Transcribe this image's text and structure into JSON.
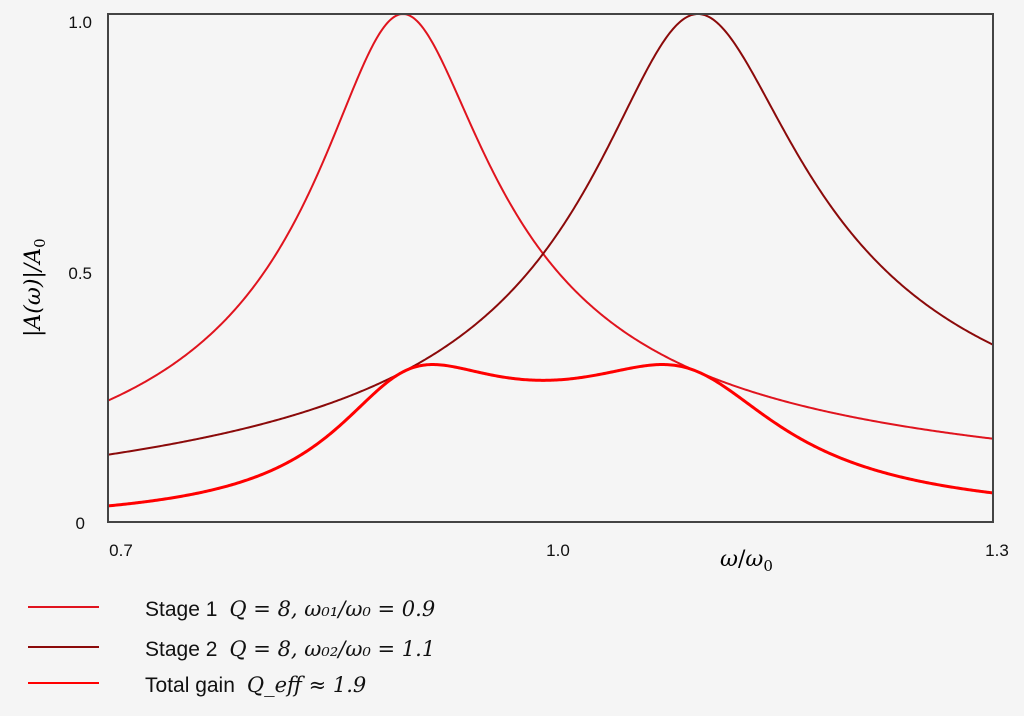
{
  "chart_data": {
    "type": "line",
    "title": "",
    "xlabel": "ω/ω₀",
    "ylabel": "|A(ω)|/A₀",
    "xlim": [
      0.7,
      1.3
    ],
    "ylim": [
      0,
      1.0
    ],
    "x_ticks": [
      "0.7",
      "1.0",
      "1.3"
    ],
    "y_ticks": [
      "0",
      "0.5",
      "1.0"
    ],
    "grid": false,
    "legend_position": "below",
    "series": [
      {
        "name": "Stage 1",
        "legend_eq": "Q = 8, ω₀₁/ω₀ = 0.9",
        "Q": 8,
        "center": 0.9,
        "color": "#e0141e",
        "width": 2,
        "sample_points": {
          "x": [
            0.7,
            0.8,
            0.9,
            1.0,
            1.1,
            1.2,
            1.3
          ],
          "y": [
            0.24,
            0.43,
            1.0,
            0.53,
            0.28,
            0.19,
            0.15
          ]
        }
      },
      {
        "name": "Stage 2",
        "legend_eq": "Q = 8, ω₀₂/ω₀ = 1.1",
        "Q": 8,
        "center": 1.1,
        "color": "#8b0a0a",
        "width": 2,
        "sample_points": {
          "x": [
            0.7,
            0.8,
            0.9,
            1.0,
            1.1,
            1.2,
            1.3
          ],
          "y": [
            0.13,
            0.19,
            0.3,
            0.53,
            1.0,
            0.54,
            0.35
          ]
        }
      },
      {
        "name": "Total gain",
        "legend_eq": "Q_eff ≈ 1.9",
        "type": "product",
        "color": "#ff0000",
        "width": 3,
        "sample_points": {
          "x": [
            0.7,
            0.8,
            0.9,
            0.95,
            1.0,
            1.05,
            1.1,
            1.2,
            1.3
          ],
          "y": [
            0.03,
            0.08,
            0.3,
            0.31,
            0.28,
            0.31,
            0.3,
            0.1,
            0.05
          ]
        }
      }
    ]
  },
  "axes": {
    "xlabel_var": "ω",
    "xlabel_sub": "0",
    "ylabel": "|A(ω)|/A",
    "ylabel_sub": "0"
  },
  "legend": [
    {
      "label": "Stage 1",
      "eq": "Q = 8, ω₀₁/ω₀ = 0.9",
      "color": "#e0141e"
    },
    {
      "label": "Stage 2",
      "eq": "Q = 8, ω₀₂/ω₀ = 1.1",
      "color": "#8b0a0a"
    },
    {
      "label": "Total gain",
      "eq": "Q_eff ≈ 1.9",
      "color": "#ff0000"
    }
  ]
}
